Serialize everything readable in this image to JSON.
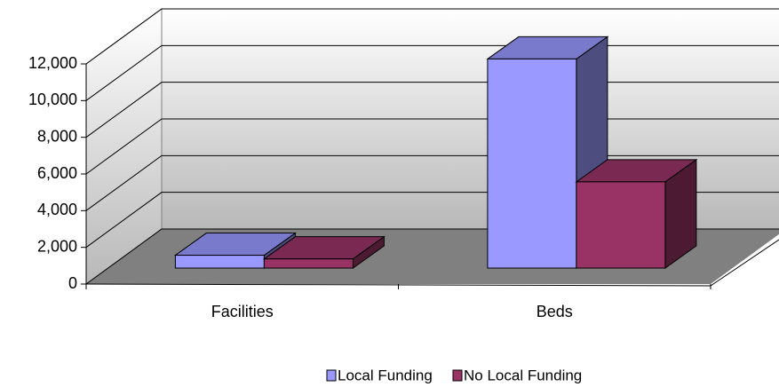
{
  "chart_data": {
    "type": "bar3d",
    "categories": [
      "Facilities",
      "Beds"
    ],
    "series": [
      {
        "name": "Local Funding",
        "color": "#9999ff",
        "values": [
          700,
          11400
        ]
      },
      {
        "name": "No Local Funding",
        "color": "#993366",
        "values": [
          500,
          4700
        ]
      }
    ],
    "ylim": [
      0,
      12000
    ],
    "yticks": [
      0,
      {
        "value": 2000,
        "label": "2,000"
      },
      {
        "value": 4000,
        "label": "4,000"
      },
      {
        "value": 6000,
        "label": "6,000"
      },
      {
        "value": 8000,
        "label": "8,000"
      },
      {
        "value": 10000,
        "label": "10,000"
      },
      {
        "value": 12000,
        "label": "12,000"
      }
    ],
    "grid": true,
    "legend": "bottom"
  }
}
